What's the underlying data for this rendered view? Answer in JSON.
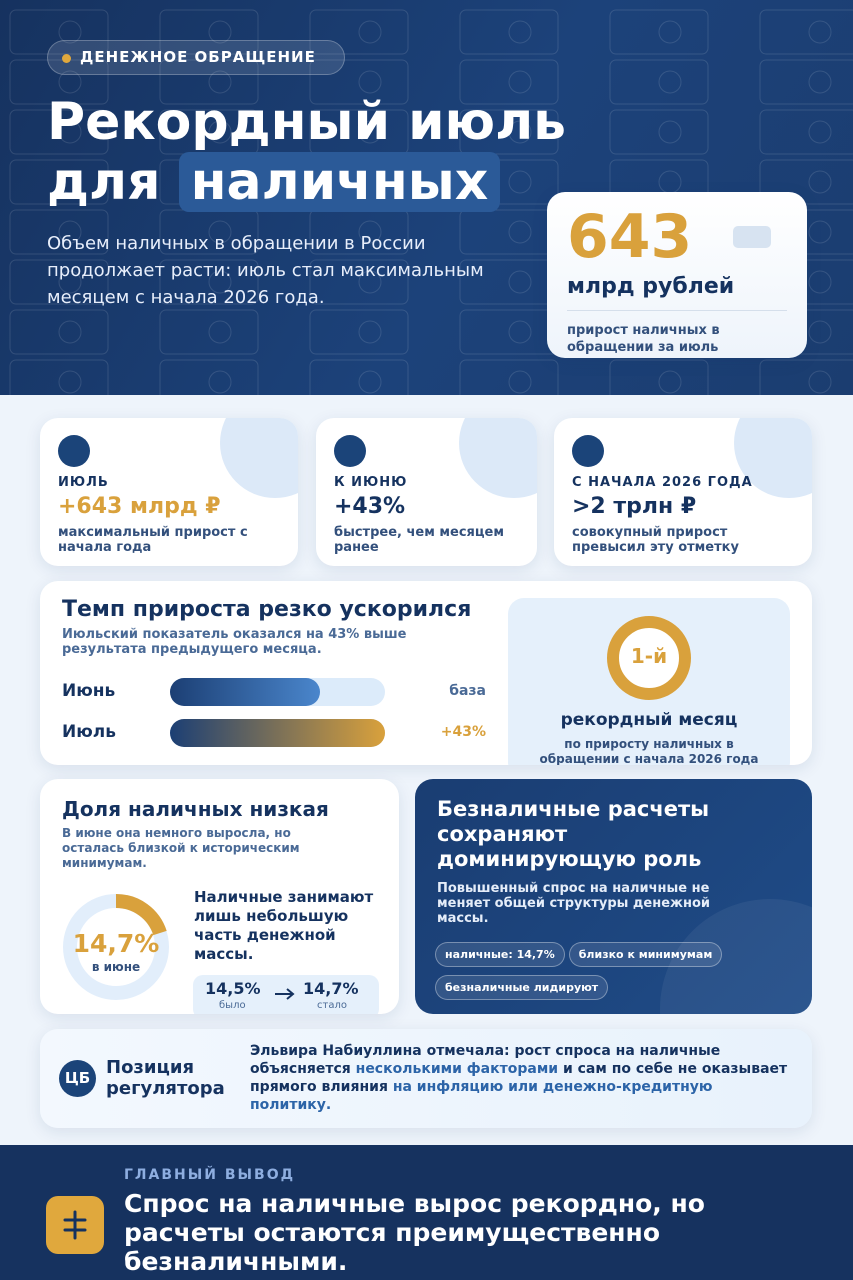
{
  "header": {
    "tag": "ДЕНЕЖНОЕ ОБРАЩЕНИЕ",
    "title_line1": "Рекордный июль",
    "title_line2": "для",
    "title_highlight": "наличных",
    "subtitle": "Объем наличных в обращении в России продолжает расти: июль стал максимальным месяцем с начала 2026 года.",
    "highlight_card": {
      "value": "643",
      "unit": "млрд рублей",
      "caption": "прирост наличных в обращении за июль"
    }
  },
  "stats": [
    {
      "label": "ИЮЛЬ",
      "value": "+643 млрд ₽",
      "description": "максимальный прирост с начала года"
    },
    {
      "label": "К ИЮНЮ",
      "value": "+43%",
      "description": "быстрее, чем месяцем ранее"
    },
    {
      "label": "С НАЧАЛА 2026 ГОДА",
      "value": ">2 трлн ₽",
      "description": "совокупный прирост превысил эту отметку"
    }
  ],
  "growth": {
    "title": "Темп прироста резко ускорился",
    "subtitle": "Июльский показатель оказался на 43% выше результата предыдущего месяца.",
    "bars": [
      {
        "label": "Июнь",
        "note": "база"
      },
      {
        "label": "Июль",
        "note": "+43%"
      }
    ],
    "record": {
      "badge": "1-й",
      "title": "рекордный месяц",
      "caption": "по приросту наличных в обращении с начала 2026 года"
    }
  },
  "share": {
    "title": "Доля наличных низкая",
    "subtitle": "В июне она немного выросла, но осталась близкой к историческим минимумам.",
    "donut_value": "14,7%",
    "donut_caption": "в июне",
    "text": "Наличные занимают лишь небольшую часть денежной массы.",
    "before": "14,5%",
    "before_label": "было",
    "after": "14,7%",
    "after_label": "стало"
  },
  "cashless": {
    "title": "Безналичные расчеты сохраняют доминирующую роль",
    "subtitle": "Повышенный спрос на наличные не меняет общей структуры денежной массы.",
    "chips": [
      "наличные: 14,7%",
      "близко к минимумам",
      "безналичные лидируют"
    ]
  },
  "regulator": {
    "badge": "ЦБ",
    "title": "Позиция регулятора",
    "quote": [
      {
        "text": "Эльвира Набиуллина отмечала: рост спроса на наличные объясняется ",
        "strong": true
      },
      {
        "text": "несколькими факторами",
        "strong": false
      },
      {
        "text": " и сам по себе не оказывает прямого влияния ",
        "strong": true
      },
      {
        "text": "на инфляцию или денежно-кредитную политику.",
        "strong": false
      }
    ]
  },
  "conclusion": {
    "label": "ГЛАВНЫЙ ВЫВОД",
    "text": "Спрос на наличные вырос рекордно, но расчеты остаются преимущественно безналичными."
  }
}
